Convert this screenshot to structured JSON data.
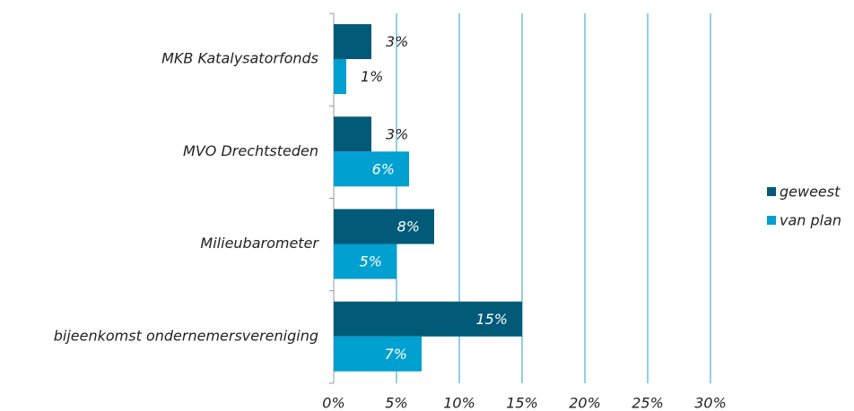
{
  "chart_data": {
    "type": "bar",
    "orientation": "horizontal",
    "categories": [
      "MKB Katalysatorfonds",
      "MVO Drechtsteden",
      "Milieubarometer",
      "bijeenkomst ondernemersvereniging"
    ],
    "series": [
      {
        "name": "geweest",
        "color": "#005a78",
        "values": [
          3,
          3,
          8,
          15
        ],
        "value_labels": [
          "3%",
          "3%",
          "8%",
          "15%"
        ]
      },
      {
        "name": "van plan",
        "color": "#00a0d0",
        "values": [
          1,
          6,
          5,
          7
        ],
        "value_labels": [
          "1%",
          "6%",
          "5%",
          "7%"
        ]
      }
    ],
    "xlim": [
      0,
      30
    ],
    "xticks": [
      {
        "value": 0,
        "label": "0%"
      },
      {
        "value": 5,
        "label": "5%"
      },
      {
        "value": 10,
        "label": "10%"
      },
      {
        "value": 15,
        "label": "15%"
      },
      {
        "value": 20,
        "label": "20%"
      },
      {
        "value": 25,
        "label": "25%"
      },
      {
        "value": 30,
        "label": "30%"
      }
    ],
    "grid": true,
    "legend": "right"
  }
}
